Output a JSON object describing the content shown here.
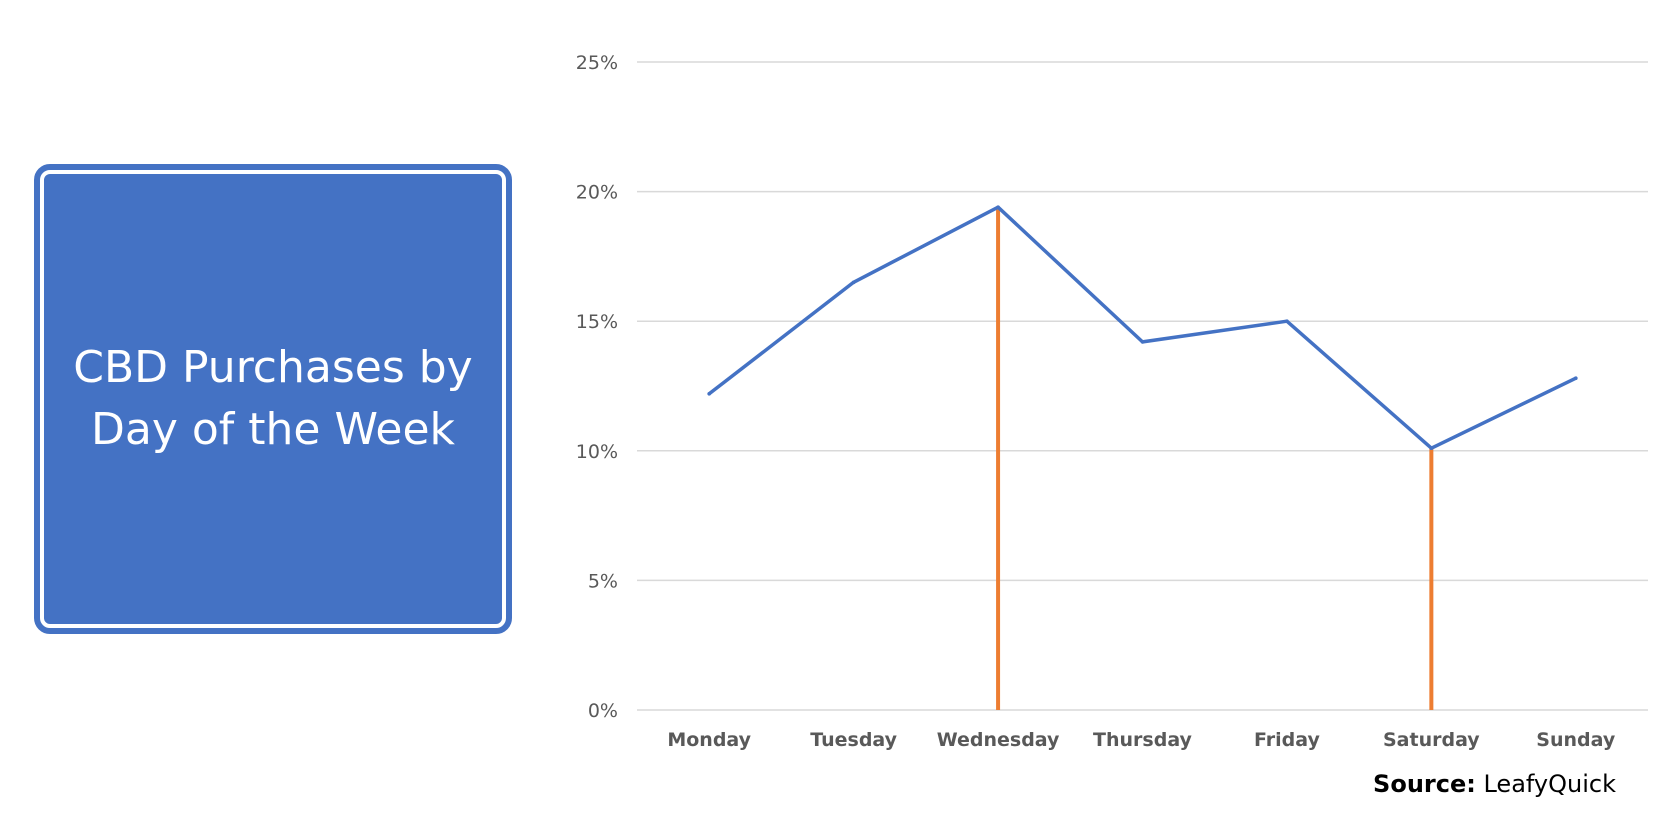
{
  "title": {
    "text": "CBD Purchases by\nDay of the Week"
  },
  "colors": {
    "box_fill": "#4472C4",
    "line": "#4472C4",
    "highlight": "#ED7D31",
    "grid": "#D9D9D9",
    "tick_text": "#595959"
  },
  "chart_data": {
    "type": "line",
    "categories": [
      "Monday",
      "Tuesday",
      "Wednesday",
      "Thursday",
      "Friday",
      "Saturday",
      "Sunday"
    ],
    "series": [
      {
        "values": [
          12.2,
          16.5,
          19.4,
          14.2,
          15.0,
          10.1,
          12.8
        ]
      }
    ],
    "highlights": [
      "Wednesday",
      "Saturday"
    ],
    "ylim": [
      0,
      25
    ],
    "yticks": [
      0,
      5,
      10,
      15,
      20,
      25
    ],
    "ytick_labels": [
      "0%",
      "5%",
      "10%",
      "15%",
      "20%",
      "25%"
    ],
    "grid": true,
    "legend": false
  },
  "source": {
    "label": "Source:",
    "value": "LeafyQuick"
  }
}
